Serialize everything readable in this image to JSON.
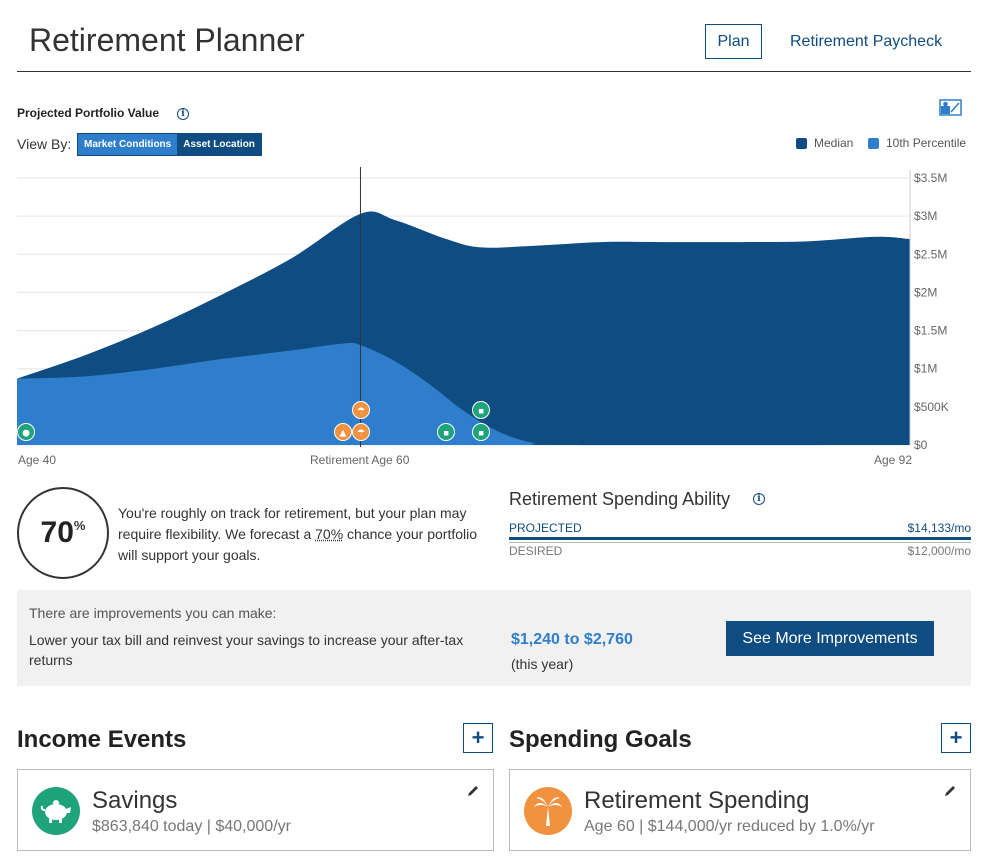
{
  "header": {
    "title": "Retirement Planner",
    "nav": {
      "plan": "Plan",
      "paycheck": "Retirement Paycheck"
    }
  },
  "portfolio": {
    "title": "Projected Portfolio Value",
    "view_by_label": "View By:",
    "view_options": [
      "Market Conditions",
      "Asset Location"
    ],
    "legend": {
      "median": "Median",
      "p10": "10th Percentile"
    },
    "x_labels": {
      "start": "Age 40",
      "retirement": "Retirement Age 60",
      "end": "Age 92"
    }
  },
  "chart_data": {
    "type": "area",
    "x_label_ages": [
      40,
      60,
      92
    ],
    "ylim": [
      0,
      3500000
    ],
    "y_ticks": [
      "$0",
      "$500K",
      "$1M",
      "$1.5M",
      "$2M",
      "$2.5M",
      "$3M",
      "$3.5M"
    ],
    "y_tick_values": [
      0,
      500000,
      1000000,
      1500000,
      2000000,
      2500000,
      3000000,
      3500000
    ],
    "series": [
      {
        "name": "Median",
        "color": "#0f4c81",
        "points": [
          [
            40,
            870000
          ],
          [
            44,
            1180000
          ],
          [
            48,
            1550000
          ],
          [
            52,
            1980000
          ],
          [
            56,
            2450000
          ],
          [
            60,
            3030000
          ],
          [
            62,
            2950000
          ],
          [
            65,
            2700000
          ],
          [
            67,
            2590000
          ],
          [
            70,
            2610000
          ],
          [
            74,
            2660000
          ],
          [
            78,
            2660000
          ],
          [
            82,
            2660000
          ],
          [
            86,
            2670000
          ],
          [
            90,
            2730000
          ],
          [
            92,
            2700000
          ]
        ]
      },
      {
        "name": "10th Percentile",
        "color": "#2f7ecb",
        "points": [
          [
            40,
            870000
          ],
          [
            44,
            900000
          ],
          [
            48,
            1000000
          ],
          [
            52,
            1130000
          ],
          [
            56,
            1240000
          ],
          [
            59,
            1330000
          ],
          [
            60,
            1310000
          ],
          [
            62,
            1100000
          ],
          [
            64,
            800000
          ],
          [
            66,
            450000
          ],
          [
            68,
            180000
          ],
          [
            70,
            30000
          ],
          [
            72,
            0
          ],
          [
            92,
            0
          ]
        ]
      }
    ],
    "marker_line_age": 60
  },
  "events": [
    {
      "icon": "piggy-bank-icon",
      "color": "#1fa37a"
    },
    {
      "icon": "umbrella-icon",
      "color": "#f0923f"
    },
    {
      "icon": "graduation-cap-icon",
      "color": "#f0923f"
    },
    {
      "icon": "umbrella-icon",
      "color": "#f0923f"
    },
    {
      "icon": "social-security-icon",
      "color": "#1fa37a"
    },
    {
      "icon": "pension-icon",
      "color": "#1fa37a"
    },
    {
      "icon": "pension-icon",
      "color": "#1fa37a"
    }
  ],
  "score": {
    "value": "70",
    "suffix": "%",
    "text_before": "You're roughly on track for retirement, but your plan may require flexibility. We forecast a ",
    "text_pct": "70%",
    "text_after": " chance your portfolio will support your goals."
  },
  "spending_ability": {
    "title": "Retirement Spending Ability",
    "projected_label": "PROJECTED",
    "projected_value": "$14,133/mo",
    "desired_label": "DESIRED",
    "desired_value": "$12,000/mo"
  },
  "improvements": {
    "heading": "There are improvements you can make:",
    "text": "Lower your tax bill and reinvest your savings to increase your after-tax returns",
    "amount": "$1,240 to $2,760",
    "amount_note": "(this year)",
    "button": "See More Improvements"
  },
  "income_events": {
    "title": "Income Events",
    "add": "+",
    "card": {
      "title": "Savings",
      "subtitle": "$863,840 today | $40,000/yr",
      "icon_color": "#1fa37a"
    }
  },
  "spending_goals": {
    "title": "Spending Goals",
    "add": "+",
    "card": {
      "title": "Retirement Spending",
      "subtitle": "Age 60 | $144,000/yr reduced by 1.0%/yr",
      "icon_color": "#f0923f"
    }
  },
  "colors": {
    "primary": "#0f4c81",
    "accent": "#2f7ecb",
    "green": "#1fa37a",
    "orange": "#f0923f"
  }
}
